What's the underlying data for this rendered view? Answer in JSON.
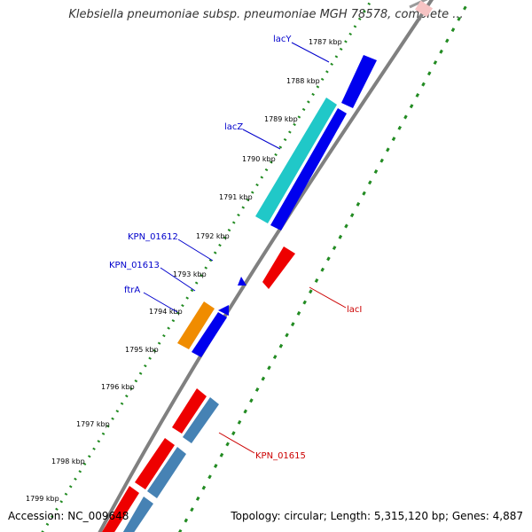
{
  "title": "Klebsiella pneumoniae subsp. pneumoniae MGH 78578, complete ...",
  "footer": {
    "accession": "Accession: NC_009648",
    "summary": "Topology: circular; Length: 5,315,120 bp; Genes: 4,887"
  },
  "colors": {
    "forward_gene": "#0000ee",
    "reverse_gene": "#ee0000",
    "lacZ": "#20c8c8",
    "ftrA": "#f08c00",
    "reverse_light": "#4682b4",
    "backbone": "#808080",
    "dotted_track": "#228b22",
    "label_forward": "#0000cc",
    "label_reverse": "#cc0000"
  },
  "ticks": [
    {
      "label": "1787 kbp"
    },
    {
      "label": "1788 kbp"
    },
    {
      "label": "1789 kbp"
    },
    {
      "label": "1790 kbp"
    },
    {
      "label": "1791 kbp"
    },
    {
      "label": "1792 kbp"
    },
    {
      "label": "1793 kbp"
    },
    {
      "label": "1794 kbp"
    },
    {
      "label": "1795 kbp"
    },
    {
      "label": "1796 kbp"
    },
    {
      "label": "1797 kbp"
    },
    {
      "label": "1798 kbp"
    },
    {
      "label": "1799 kbp"
    }
  ],
  "genes": [
    {
      "name": "lacY",
      "strand": "forward"
    },
    {
      "name": "lacZ",
      "strand": "forward"
    },
    {
      "name": "KPN_01612",
      "strand": "forward"
    },
    {
      "name": "KPN_01613",
      "strand": "forward"
    },
    {
      "name": "ftrA",
      "strand": "forward"
    },
    {
      "name": "lacI",
      "strand": "reverse"
    },
    {
      "name": "KPN_01615",
      "strand": "reverse"
    }
  ]
}
